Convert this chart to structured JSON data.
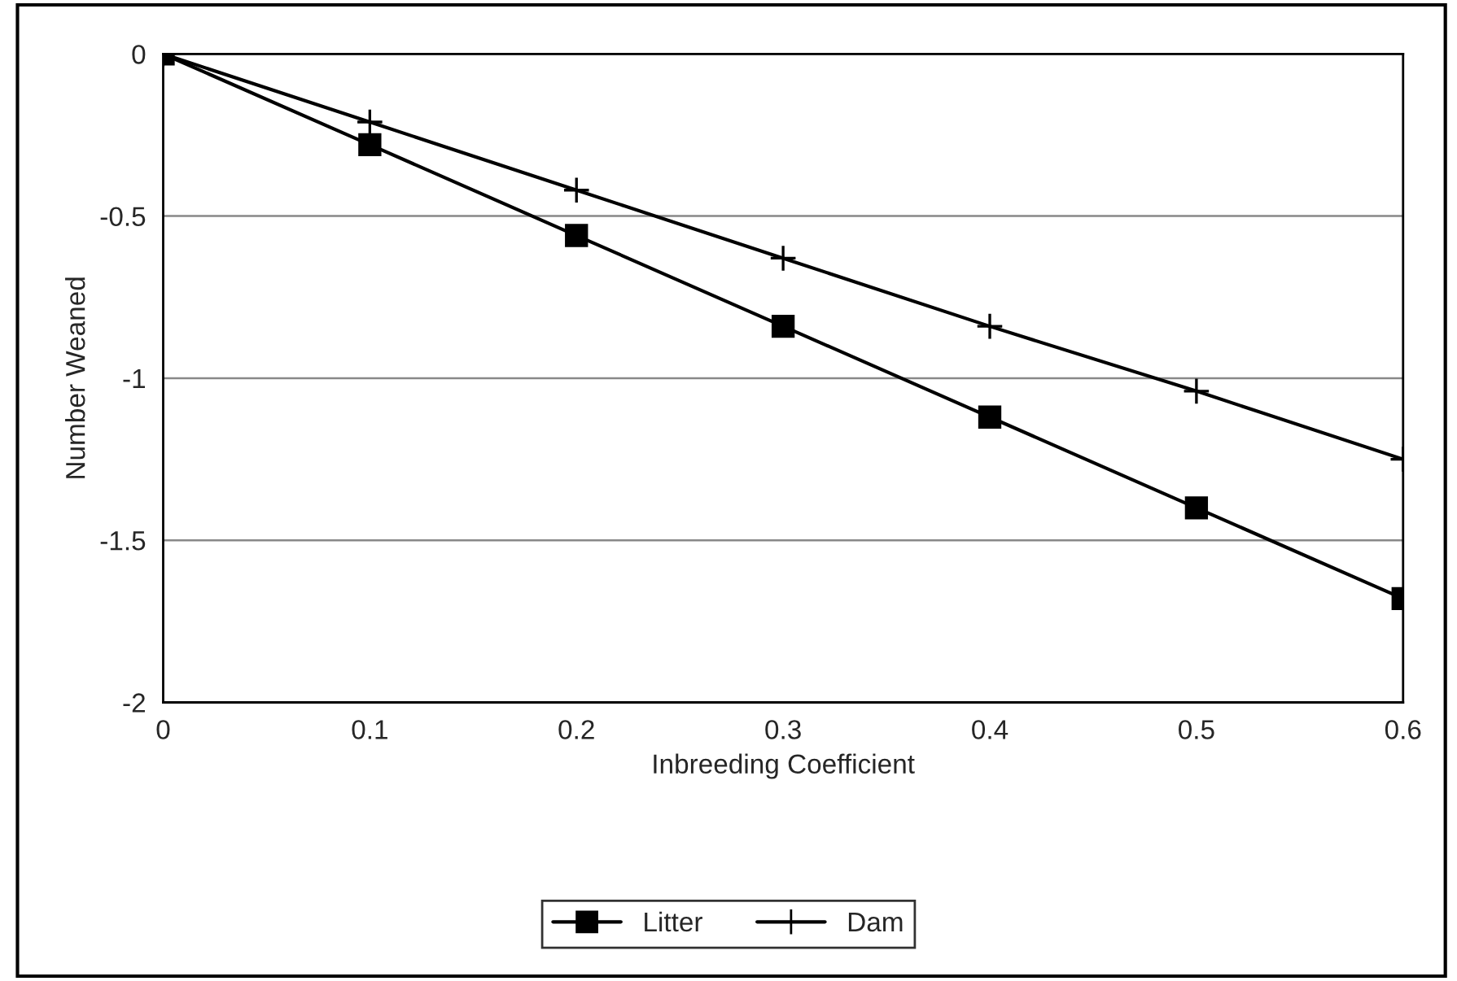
{
  "chart_data": {
    "type": "line",
    "xlabel": "Inbreeding Coefficient",
    "ylabel": "Number Weaned",
    "x": [
      0,
      0.1,
      0.2,
      0.3,
      0.4,
      0.5,
      0.6
    ],
    "series": [
      {
        "name": "Litter",
        "color": "#000000",
        "marker": "square",
        "values": [
          0,
          -0.28,
          -0.56,
          -0.84,
          -1.12,
          -1.4,
          -1.68
        ]
      },
      {
        "name": "Dam",
        "color": "#000000",
        "marker": "cross",
        "values": [
          0,
          -0.21,
          -0.42,
          -0.63,
          -0.84,
          -1.04,
          -1.25
        ]
      }
    ],
    "xlim": [
      0,
      0.6
    ],
    "xticks": [
      0,
      0.1,
      0.2,
      0.3,
      0.4,
      0.5,
      0.6
    ],
    "ylim": [
      -2,
      0
    ],
    "yticks": [
      -2,
      -1.5,
      -1,
      -0.5,
      0
    ],
    "grid": "y",
    "legend": "bottom",
    "line_style": "solid"
  }
}
